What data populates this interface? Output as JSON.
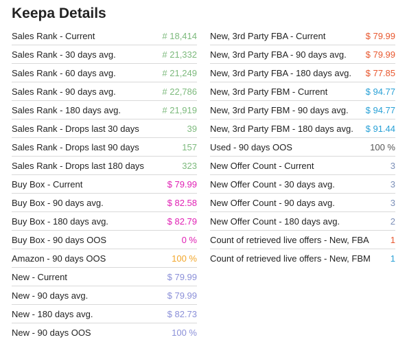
{
  "title": "Keepa Details",
  "colors": {
    "green": "#7dba7d",
    "pink": "#e020b4",
    "orange": "#f2a62a",
    "lavender": "#8a8fd8",
    "red": "#e8572e",
    "blue": "#27a0d6",
    "gray": "#555555",
    "mutedblue": "#7b8fb8"
  },
  "left_rows": [
    {
      "label": "Sales Rank - Current",
      "value": "# 18,414",
      "color": "#7dba7d"
    },
    {
      "label": "Sales Rank - 30 days avg.",
      "value": "# 21,332",
      "color": "#7dba7d"
    },
    {
      "label": "Sales Rank - 60 days avg.",
      "value": "# 21,249",
      "color": "#7dba7d"
    },
    {
      "label": "Sales Rank - 90 days avg.",
      "value": "# 22,786",
      "color": "#7dba7d"
    },
    {
      "label": "Sales Rank - 180 days avg.",
      "value": "# 21,919",
      "color": "#7dba7d"
    },
    {
      "label": "Sales Rank - Drops last 30 days",
      "value": "39",
      "color": "#7dba7d"
    },
    {
      "label": "Sales Rank - Drops last 90 days",
      "value": "157",
      "color": "#7dba7d"
    },
    {
      "label": "Sales Rank - Drops last 180 days",
      "value": "323",
      "color": "#7dba7d"
    },
    {
      "label": "Buy Box - Current",
      "value": "$ 79.99",
      "color": "#e020b4"
    },
    {
      "label": "Buy Box - 90 days avg.",
      "value": "$ 82.58",
      "color": "#e020b4"
    },
    {
      "label": "Buy Box - 180 days avg.",
      "value": "$ 82.79",
      "color": "#e020b4"
    },
    {
      "label": "Buy Box - 90 days OOS",
      "value": "0 %",
      "color": "#e020b4"
    },
    {
      "label": "Amazon - 90 days OOS",
      "value": "100 %",
      "color": "#f2a62a"
    },
    {
      "label": "New - Current",
      "value": "$ 79.99",
      "color": "#8a8fd8"
    },
    {
      "label": "New - 90 days avg.",
      "value": "$ 79.99",
      "color": "#8a8fd8"
    },
    {
      "label": "New - 180 days avg.",
      "value": "$ 82.73",
      "color": "#8a8fd8"
    },
    {
      "label": "New - 90 days OOS",
      "value": "100 %",
      "color": "#8a8fd8"
    }
  ],
  "right_rows": [
    {
      "label": "New, 3rd Party FBA - Current",
      "value": "$ 79.99",
      "color": "#e8572e"
    },
    {
      "label": "New, 3rd Party FBA - 90 days avg.",
      "value": "$ 79.99",
      "color": "#e8572e"
    },
    {
      "label": "New, 3rd Party FBA - 180 days avg.",
      "value": "$ 77.85",
      "color": "#e8572e"
    },
    {
      "label": "New, 3rd Party FBM - Current",
      "value": "$ 94.77",
      "color": "#27a0d6"
    },
    {
      "label": "New, 3rd Party FBM - 90 days avg.",
      "value": "$ 94.77",
      "color": "#27a0d6"
    },
    {
      "label": "New, 3rd Party FBM - 180 days avg.",
      "value": "$ 91.44",
      "color": "#27a0d6"
    },
    {
      "label": "Used - 90 days OOS",
      "value": "100 %",
      "color": "#555555"
    },
    {
      "label": "New Offer Count - Current",
      "value": "3",
      "color": "#7b8fb8"
    },
    {
      "label": "New Offer Count - 30 days avg.",
      "value": "3",
      "color": "#7b8fb8"
    },
    {
      "label": "New Offer Count - 90 days avg.",
      "value": "3",
      "color": "#7b8fb8"
    },
    {
      "label": "New Offer Count - 180 days avg.",
      "value": "2",
      "color": "#7b8fb8"
    },
    {
      "label": "Count of retrieved live offers - New, FBA",
      "value": "1",
      "color": "#e8572e"
    },
    {
      "label": "Count of retrieved live offers - New, FBM",
      "value": "1",
      "color": "#27a0d6"
    }
  ]
}
